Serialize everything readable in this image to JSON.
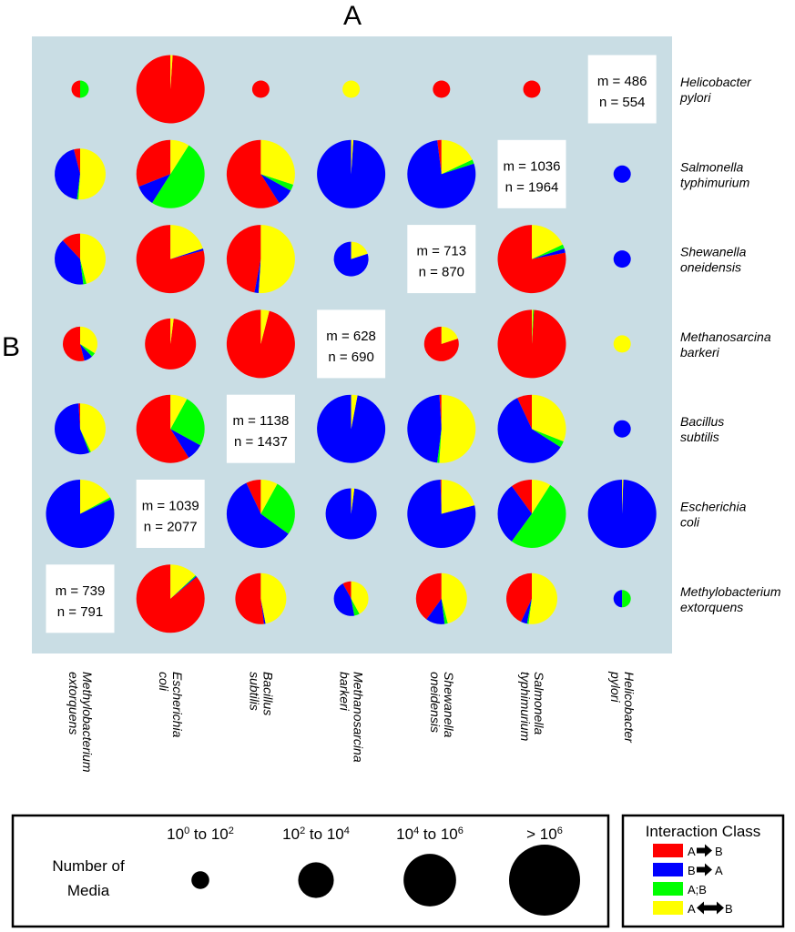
{
  "chart_data": {
    "type": "pie",
    "title_columns": "A",
    "title_rows": "B",
    "columns": [
      "Methylobacterium extorquens",
      "Escherichia coli",
      "Bacillus subtilis",
      "Methanosarcina barkeri",
      "Shewanella oneidensis",
      "Salmonella typhimurium",
      "Helicobacter pylori"
    ],
    "column_labels": [
      [
        "Methylobacterium",
        "extorquens"
      ],
      [
        "Escherichia",
        "coli"
      ],
      [
        "Bacillus",
        "subtilis"
      ],
      [
        "Methanosarcina",
        "barkeri"
      ],
      [
        "Shewanella",
        "oneidensis"
      ],
      [
        "Salmonella",
        "typhimurium"
      ],
      [
        "Helicobacter",
        "pylori"
      ]
    ],
    "rows": [
      "Helicobacter pylori",
      "Salmonella typhimurium",
      "Shewanella oneidensis",
      "Methanosarcina barkeri",
      "Bacillus subtilis",
      "Escherichia coli",
      "Methylobacterium extorquens"
    ],
    "row_labels": [
      [
        "Helicobacter",
        "pylori"
      ],
      [
        "Salmonella",
        "typhimurium"
      ],
      [
        "Shewanella",
        "oneidensis"
      ],
      [
        "Methanosarcina",
        "barkeri"
      ],
      [
        "Bacillus",
        "subtilis"
      ],
      [
        "Escherichia",
        "coli"
      ],
      [
        "Methylobacterium",
        "extorquens"
      ]
    ],
    "slice_order": [
      "A→B",
      "B→A",
      "A;B",
      "A↔B"
    ],
    "cells": [
      [
        {
          "size": 1,
          "f": [
            0.5,
            0,
            0.5,
            0
          ]
        },
        {
          "size": 4,
          "f": [
            0.99,
            0,
            0,
            0.01
          ]
        },
        {
          "size": 1,
          "f": [
            1,
            0,
            0,
            0
          ]
        },
        {
          "size": 1,
          "f": [
            0,
            0,
            0,
            1
          ]
        },
        {
          "size": 1,
          "f": [
            1,
            0,
            0,
            0
          ]
        },
        {
          "size": 1,
          "f": [
            1,
            0,
            0,
            0
          ]
        },
        {
          "m": "m = 486",
          "n": "n = 554"
        }
      ],
      [
        {
          "size": 3,
          "f": [
            0.04,
            0.44,
            0.01,
            0.51
          ]
        },
        {
          "size": 4,
          "f": [
            0.31,
            0.1,
            0.5,
            0.09
          ]
        },
        {
          "size": 4,
          "f": [
            0.59,
            0.08,
            0.03,
            0.3
          ]
        },
        {
          "size": 4,
          "f": [
            0,
            0.99,
            0,
            0.01
          ]
        },
        {
          "size": 4,
          "f": [
            0.02,
            0.78,
            0.02,
            0.18
          ]
        },
        {
          "m": "m = 1036",
          "n": "n = 1964"
        },
        {
          "size": 1,
          "f": [
            0,
            1,
            0,
            0
          ]
        }
      ],
      [
        {
          "size": 3,
          "f": [
            0.12,
            0.4,
            0.02,
            0.46
          ]
        },
        {
          "size": 4,
          "f": [
            0.79,
            0.01,
            0,
            0.2
          ]
        },
        {
          "size": 4,
          "f": [
            0.47,
            0.02,
            0,
            0.51
          ]
        },
        {
          "size": 2,
          "f": [
            0,
            0.8,
            0,
            0.2
          ]
        },
        {
          "m": "m = 713",
          "n": "n = 870"
        },
        {
          "size": 4,
          "f": [
            0.78,
            0.02,
            0.02,
            0.18
          ]
        },
        {
          "size": 1,
          "f": [
            0,
            1,
            0,
            0
          ]
        }
      ],
      [
        {
          "size": 2,
          "f": [
            0.54,
            0.08,
            0.04,
            0.34
          ]
        },
        {
          "size": 3,
          "f": [
            0.98,
            0,
            0,
            0.02
          ]
        },
        {
          "size": 4,
          "f": [
            0.96,
            0,
            0,
            0.04
          ]
        },
        {
          "m": "m = 628",
          "n": "n = 690"
        },
        {
          "size": 2,
          "f": [
            0.8,
            0,
            0,
            0.2
          ]
        },
        {
          "size": 4,
          "f": [
            0.99,
            0,
            0.005,
            0.005
          ]
        },
        {
          "size": 1,
          "f": [
            0,
            0,
            0,
            1
          ]
        }
      ],
      [
        {
          "size": 3,
          "f": [
            0.01,
            0.55,
            0.01,
            0.43
          ]
        },
        {
          "size": 4,
          "f": [
            0.59,
            0.08,
            0.25,
            0.08
          ]
        },
        {
          "m": "m = 1138",
          "n": "n = 1437"
        },
        {
          "size": 4,
          "f": [
            0,
            0.97,
            0,
            0.03
          ]
        },
        {
          "size": 4,
          "f": [
            0.01,
            0.47,
            0.01,
            0.51
          ]
        },
        {
          "size": 4,
          "f": [
            0.07,
            0.59,
            0.03,
            0.31
          ]
        },
        {
          "size": 1,
          "f": [
            0,
            1,
            0,
            0
          ]
        }
      ],
      [
        {
          "size": 4,
          "f": [
            0,
            0.82,
            0.01,
            0.17
          ]
        },
        {
          "m": "m = 1039",
          "n": "n = 2077"
        },
        {
          "size": 4,
          "f": [
            0.07,
            0.58,
            0.27,
            0.08
          ]
        },
        {
          "size": 3,
          "f": [
            0,
            0.98,
            0,
            0.02
          ]
        },
        {
          "size": 4,
          "f": [
            0.005,
            0.785,
            0,
            0.21
          ]
        },
        {
          "size": 4,
          "f": [
            0.1,
            0.3,
            0.51,
            0.09
          ]
        },
        {
          "size": 4,
          "f": [
            0,
            0.995,
            0,
            0.005
          ]
        }
      ],
      [
        {
          "m": "m = 739",
          "n": "n = 791"
        },
        {
          "size": 4,
          "f": [
            0.86,
            0.005,
            0.005,
            0.13
          ]
        },
        {
          "size": 3,
          "f": [
            0.52,
            0.01,
            0,
            0.47
          ]
        },
        {
          "size": 2,
          "f": [
            0.08,
            0.45,
            0.05,
            0.42
          ]
        },
        {
          "size": 3,
          "f": [
            0.4,
            0.12,
            0.02,
            0.46
          ]
        },
        {
          "size": 3,
          "f": [
            0.43,
            0.04,
            0.01,
            0.52
          ]
        },
        {
          "size": 1,
          "f": [
            0,
            0.5,
            0.5,
            0
          ]
        }
      ]
    ]
  },
  "colors": {
    "A→B": "#ff0000",
    "B→A": "#0000ff",
    "A;B": "#00ff00",
    "A↔B": "#ffff00",
    "background": "#c9dde4"
  },
  "size_legend": {
    "title_line1": "Number of",
    "title_line2": "Media",
    "classes": [
      {
        "base1": "10",
        "exp1": "0",
        "mid": "  to ",
        "base2": "10",
        "exp2": "2"
      },
      {
        "base1": "10",
        "exp1": "2",
        "mid": "  to ",
        "base2": "10",
        "exp2": "4"
      },
      {
        "base1": "10",
        "exp1": "4",
        "mid": "  to ",
        "base2": "10",
        "exp2": "6"
      },
      {
        "base1": "> ",
        "exp1": "",
        "mid": "",
        "base2": "10",
        "exp2": "6"
      }
    ]
  },
  "class_legend": {
    "title": "Interaction Class",
    "items": [
      {
        "from": "A",
        "to": "B",
        "arrow": "right"
      },
      {
        "from": "B",
        "to": "A",
        "arrow": "right"
      },
      {
        "label": "A;B"
      },
      {
        "from": "A",
        "to": "B",
        "arrow": "both"
      }
    ]
  }
}
